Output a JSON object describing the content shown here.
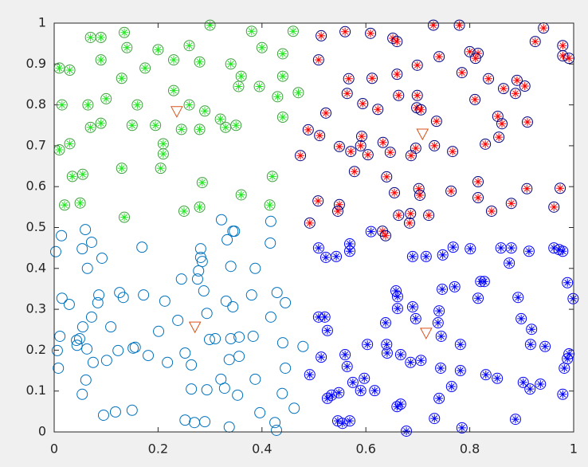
{
  "chart_data": {
    "type": "scatter",
    "xlim": [
      0,
      1
    ],
    "ylim": [
      0,
      1
    ],
    "xticks": [
      0,
      0.2,
      0.4,
      0.6,
      0.8,
      1
    ],
    "yticks": [
      0,
      0.1,
      0.2,
      0.3,
      0.4,
      0.5,
      0.6,
      0.7,
      0.8,
      0.9,
      1
    ],
    "box": true,
    "series": [
      {
        "marker": "circle-asterisk",
        "color": "#3f9f3f",
        "asterisk_color": "#22e822",
        "x": [
          0.01,
          0.015,
          0.07,
          0.09,
          0.135,
          0.14,
          0.2,
          0.26,
          0.3,
          0.38,
          0.46,
          0.03,
          0.09,
          0.175,
          0.23,
          0.28,
          0.34,
          0.36,
          0.4,
          0.44,
          0.065,
          0.1,
          0.13,
          0.16,
          0.23,
          0.26,
          0.29,
          0.32,
          0.355,
          0.395,
          0.44,
          0.47,
          0.43,
          0.03,
          0.01,
          0.035,
          0.055,
          0.02,
          0.05,
          0.07,
          0.09,
          0.13,
          0.15,
          0.195,
          0.245,
          0.28,
          0.33,
          0.35,
          0.44,
          0.42,
          0.415,
          0.36,
          0.28,
          0.25,
          0.135,
          0.205,
          0.21,
          0.285,
          0.21
        ],
        "values": [
          0.89,
          0.8,
          0.965,
          0.965,
          0.977,
          0.94,
          0.935,
          0.945,
          0.995,
          0.98,
          0.98,
          0.885,
          0.91,
          0.89,
          0.91,
          0.905,
          0.9,
          0.87,
          0.94,
          0.925,
          0.8,
          0.815,
          0.865,
          0.8,
          0.835,
          0.8,
          0.785,
          0.765,
          0.845,
          0.845,
          0.87,
          0.83,
          0.82,
          0.705,
          0.69,
          0.625,
          0.63,
          0.555,
          0.56,
          0.745,
          0.755,
          0.645,
          0.75,
          0.75,
          0.74,
          0.74,
          0.745,
          0.75,
          0.77,
          0.625,
          0.555,
          0.58,
          0.55,
          0.54,
          0.525,
          0.645,
          0.68,
          0.61,
          0.705
        ]
      },
      {
        "marker": "circle-asterisk",
        "color": "#000080",
        "asterisk_color": "#ff0000",
        "x": [
          0.514,
          0.56,
          0.609,
          0.652,
          0.66,
          0.73,
          0.78,
          0.8,
          0.816,
          0.811,
          0.942,
          0.979,
          0.979,
          0.991,
          0.926,
          0.741,
          0.785,
          0.567,
          0.612,
          0.66,
          0.699,
          0.509,
          0.523,
          0.564,
          0.594,
          0.623,
          0.663,
          0.698,
          0.699,
          0.736,
          0.706,
          0.81,
          0.836,
          0.865,
          0.891,
          0.906,
          0.888,
          0.854,
          0.862,
          0.911,
          0.856,
          0.83,
          0.767,
          0.732,
          0.696,
          0.687,
          0.633,
          0.647,
          0.549,
          0.511,
          0.489,
          0.474,
          0.59,
          0.592,
          0.604,
          0.571,
          0.578,
          0.64,
          0.655,
          0.702,
          0.704,
          0.764,
          0.816,
          0.816,
          0.842,
          0.88,
          0.91,
          0.974,
          0.962,
          0.549,
          0.546,
          0.508,
          0.492,
          0.632,
          0.638,
          0.663,
          0.686,
          0.721,
          0.684
        ],
        "values": [
          0.969,
          0.979,
          0.975,
          0.963,
          0.955,
          0.995,
          0.995,
          0.93,
          0.926,
          0.914,
          0.988,
          0.945,
          0.92,
          0.914,
          0.955,
          0.918,
          0.879,
          0.864,
          0.865,
          0.875,
          0.897,
          0.91,
          0.78,
          0.828,
          0.803,
          0.789,
          0.823,
          0.793,
          0.823,
          0.76,
          0.788,
          0.813,
          0.864,
          0.84,
          0.86,
          0.846,
          0.828,
          0.772,
          0.754,
          0.758,
          0.721,
          0.704,
          0.686,
          0.7,
          0.694,
          0.676,
          0.708,
          0.684,
          0.698,
          0.725,
          0.739,
          0.676,
          0.7,
          0.723,
          0.678,
          0.686,
          0.637,
          0.624,
          0.585,
          0.595,
          0.579,
          0.589,
          0.612,
          0.573,
          0.54,
          0.559,
          0.595,
          0.596,
          0.55,
          0.556,
          0.54,
          0.565,
          0.511,
          0.491,
          0.48,
          0.53,
          0.534,
          0.53,
          0.511
        ]
      },
      {
        "marker": "circle-asterisk",
        "color": "#0000ff",
        "asterisk_color": "#0000ff",
        "x": [
          0.523,
          0.543,
          0.569,
          0.569,
          0.509,
          0.61,
          0.69,
          0.716,
          0.748,
          0.768,
          0.801,
          0.821,
          0.828,
          0.88,
          0.86,
          0.876,
          0.914,
          0.962,
          0.972,
          0.979,
          0.988,
          0.999,
          0.816,
          0.771,
          0.747,
          0.741,
          0.658,
          0.661,
          0.661,
          0.69,
          0.696,
          0.638,
          0.641,
          0.686,
          0.706,
          0.745,
          0.739,
          0.782,
          0.782,
          0.744,
          0.765,
          0.741,
          0.732,
          0.785,
          0.678,
          0.66,
          0.667,
          0.617,
          0.597,
          0.575,
          0.564,
          0.548,
          0.534,
          0.546,
          0.555,
          0.569,
          0.603,
          0.64,
          0.667,
          0.526,
          0.514,
          0.526,
          0.509,
          0.521,
          0.492,
          0.56,
          0.59,
          0.831,
          0.853,
          0.893,
          0.899,
          0.919,
          0.917,
          0.945,
          0.903,
          0.916,
          0.936,
          0.982,
          0.988,
          0.991,
          0.979,
          0.888
        ],
        "values": [
          0.427,
          0.429,
          0.46,
          0.442,
          0.45,
          0.49,
          0.429,
          0.429,
          0.433,
          0.452,
          0.448,
          0.368,
          0.368,
          0.45,
          0.45,
          0.413,
          0.442,
          0.45,
          0.446,
          0.442,
          0.365,
          0.326,
          0.327,
          0.355,
          0.349,
          0.296,
          0.345,
          0.331,
          0.302,
          0.306,
          0.277,
          0.267,
          0.193,
          0.17,
          0.175,
          0.234,
          0.267,
          0.214,
          0.15,
          0.156,
          0.111,
          0.082,
          0.033,
          0.01,
          0.002,
          0.062,
          0.068,
          0.101,
          0.131,
          0.121,
          0.16,
          0.096,
          0.09,
          0.027,
          0.021,
          0.027,
          0.214,
          0.214,
          0.189,
          0.082,
          0.183,
          0.248,
          0.281,
          0.281,
          0.14,
          0.189,
          0.101,
          0.14,
          0.131,
          0.329,
          0.277,
          0.251,
          0.214,
          0.209,
          0.121,
          0.105,
          0.117,
          0.156,
          0.179,
          0.191,
          0.092,
          0.031
        ]
      },
      {
        "marker": "circle",
        "color": "#0072bd",
        "x": [
          0.003,
          0.014,
          0.015,
          0.029,
          0.054,
          0.06,
          0.064,
          0.072,
          0.092,
          0.086,
          0.084,
          0.126,
          0.133,
          0.169,
          0.172,
          0.213,
          0.049,
          0.055,
          0.044,
          0.072,
          0.063,
          0.101,
          0.109,
          0.123,
          0.095,
          0.118,
          0.15,
          0.152,
          0.156,
          0.181,
          0.201,
          0.218,
          0.054,
          0.011,
          0.006,
          0.008,
          0.043,
          0.061,
          0.075,
          0.238,
          0.245,
          0.276,
          0.282,
          0.282,
          0.285,
          0.278,
          0.288,
          0.294,
          0.299,
          0.252,
          0.264,
          0.264,
          0.252,
          0.27,
          0.29,
          0.294,
          0.321,
          0.328,
          0.337,
          0.34,
          0.344,
          0.331,
          0.34,
          0.347,
          0.322,
          0.344,
          0.333,
          0.356,
          0.356,
          0.353,
          0.387,
          0.383,
          0.387,
          0.38,
          0.417,
          0.416,
          0.429,
          0.445,
          0.44,
          0.439,
          0.425,
          0.428,
          0.396,
          0.337,
          0.417,
          0.445,
          0.479,
          0.462,
          0.31
        ],
        "values": [
          0.441,
          0.48,
          0.327,
          0.312,
          0.448,
          0.495,
          0.4,
          0.464,
          0.425,
          0.335,
          0.316,
          0.341,
          0.329,
          0.452,
          0.335,
          0.32,
          0.228,
          0.257,
          0.212,
          0.281,
          0.203,
          0.175,
          0.257,
          0.199,
          0.041,
          0.049,
          0.053,
          0.205,
          0.207,
          0.187,
          0.246,
          0.17,
          0.092,
          0.234,
          0.199,
          0.156,
          0.224,
          0.127,
          0.17,
          0.273,
          0.374,
          0.374,
          0.448,
          0.427,
          0.417,
          0.394,
          0.345,
          0.29,
          0.226,
          0.193,
          0.164,
          0.105,
          0.029,
          0.023,
          0.025,
          0.103,
          0.129,
          0.107,
          0.177,
          0.228,
          0.306,
          0.32,
          0.405,
          0.491,
          0.519,
          0.491,
          0.47,
          0.232,
          0.185,
          0.09,
          0.129,
          0.234,
          0.4,
          0.335,
          0.515,
          0.462,
          0.341,
          0.316,
          0.218,
          0.094,
          0.023,
          0.004,
          0.047,
          0.012,
          0.281,
          0.156,
          0.209,
          0.058,
          0.228
        ]
      },
      {
        "marker": "triangle-down",
        "color": "#d95319",
        "x": [
          0.236,
          0.709,
          0.271,
          0.716
        ],
        "values": [
          0.784,
          0.729,
          0.257,
          0.242
        ]
      }
    ]
  }
}
